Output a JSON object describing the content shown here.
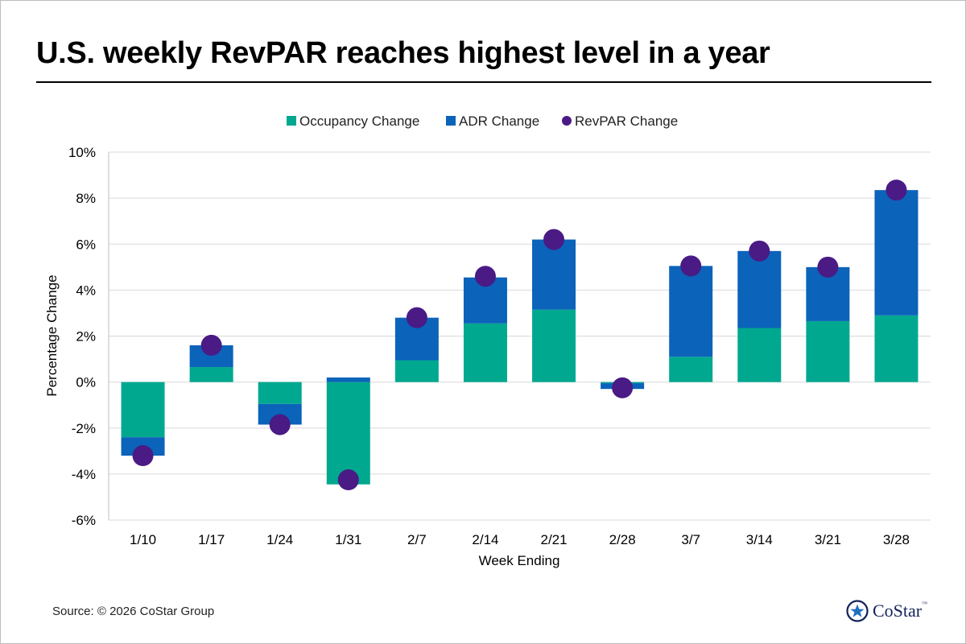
{
  "title": "U.S. weekly RevPAR reaches highest level in a year",
  "source": "Source: © 2026 CoStar Group",
  "logo": {
    "text": "CoStar",
    "tm": "™"
  },
  "colors": {
    "occupancy": "#00A88F",
    "adr": "#0B63BA",
    "revpar": "#4A1A85",
    "grid": "#d9d9d9",
    "axis_text": "#000000"
  },
  "chart_data": {
    "type": "bar",
    "stacked": true,
    "categories": [
      "1/10",
      "1/17",
      "1/24",
      "1/31",
      "2/7",
      "2/14",
      "2/21",
      "2/28",
      "3/7",
      "3/14",
      "3/21",
      "3/28"
    ],
    "series": [
      {
        "name": "Occupancy Change",
        "kind": "bar",
        "values": [
          -2.4,
          0.65,
          -0.95,
          -4.45,
          0.95,
          2.55,
          3.15,
          -0.05,
          1.1,
          2.35,
          2.65,
          2.9
        ]
      },
      {
        "name": "ADR Change",
        "kind": "bar",
        "values": [
          -0.8,
          0.95,
          -0.9,
          0.2,
          1.85,
          2.0,
          3.05,
          -0.25,
          3.95,
          3.35,
          2.35,
          5.45
        ]
      },
      {
        "name": "RevPAR Change",
        "kind": "point",
        "values": [
          -3.2,
          1.6,
          -1.85,
          -4.25,
          2.8,
          4.6,
          6.2,
          -0.25,
          5.05,
          5.7,
          5.0,
          8.35
        ]
      }
    ],
    "xlabel": "Week Ending",
    "ylabel": "Percentage Change",
    "ylim": [
      -6,
      10
    ],
    "yticks": [
      10,
      8,
      6,
      4,
      2,
      0,
      -2,
      -4,
      -6
    ],
    "ytick_labels": [
      "10%",
      "8%",
      "6%",
      "4%",
      "2%",
      "0%",
      "-2%",
      "-4%",
      "-6%"
    ],
    "grid": true,
    "legend_position": "top-center"
  }
}
